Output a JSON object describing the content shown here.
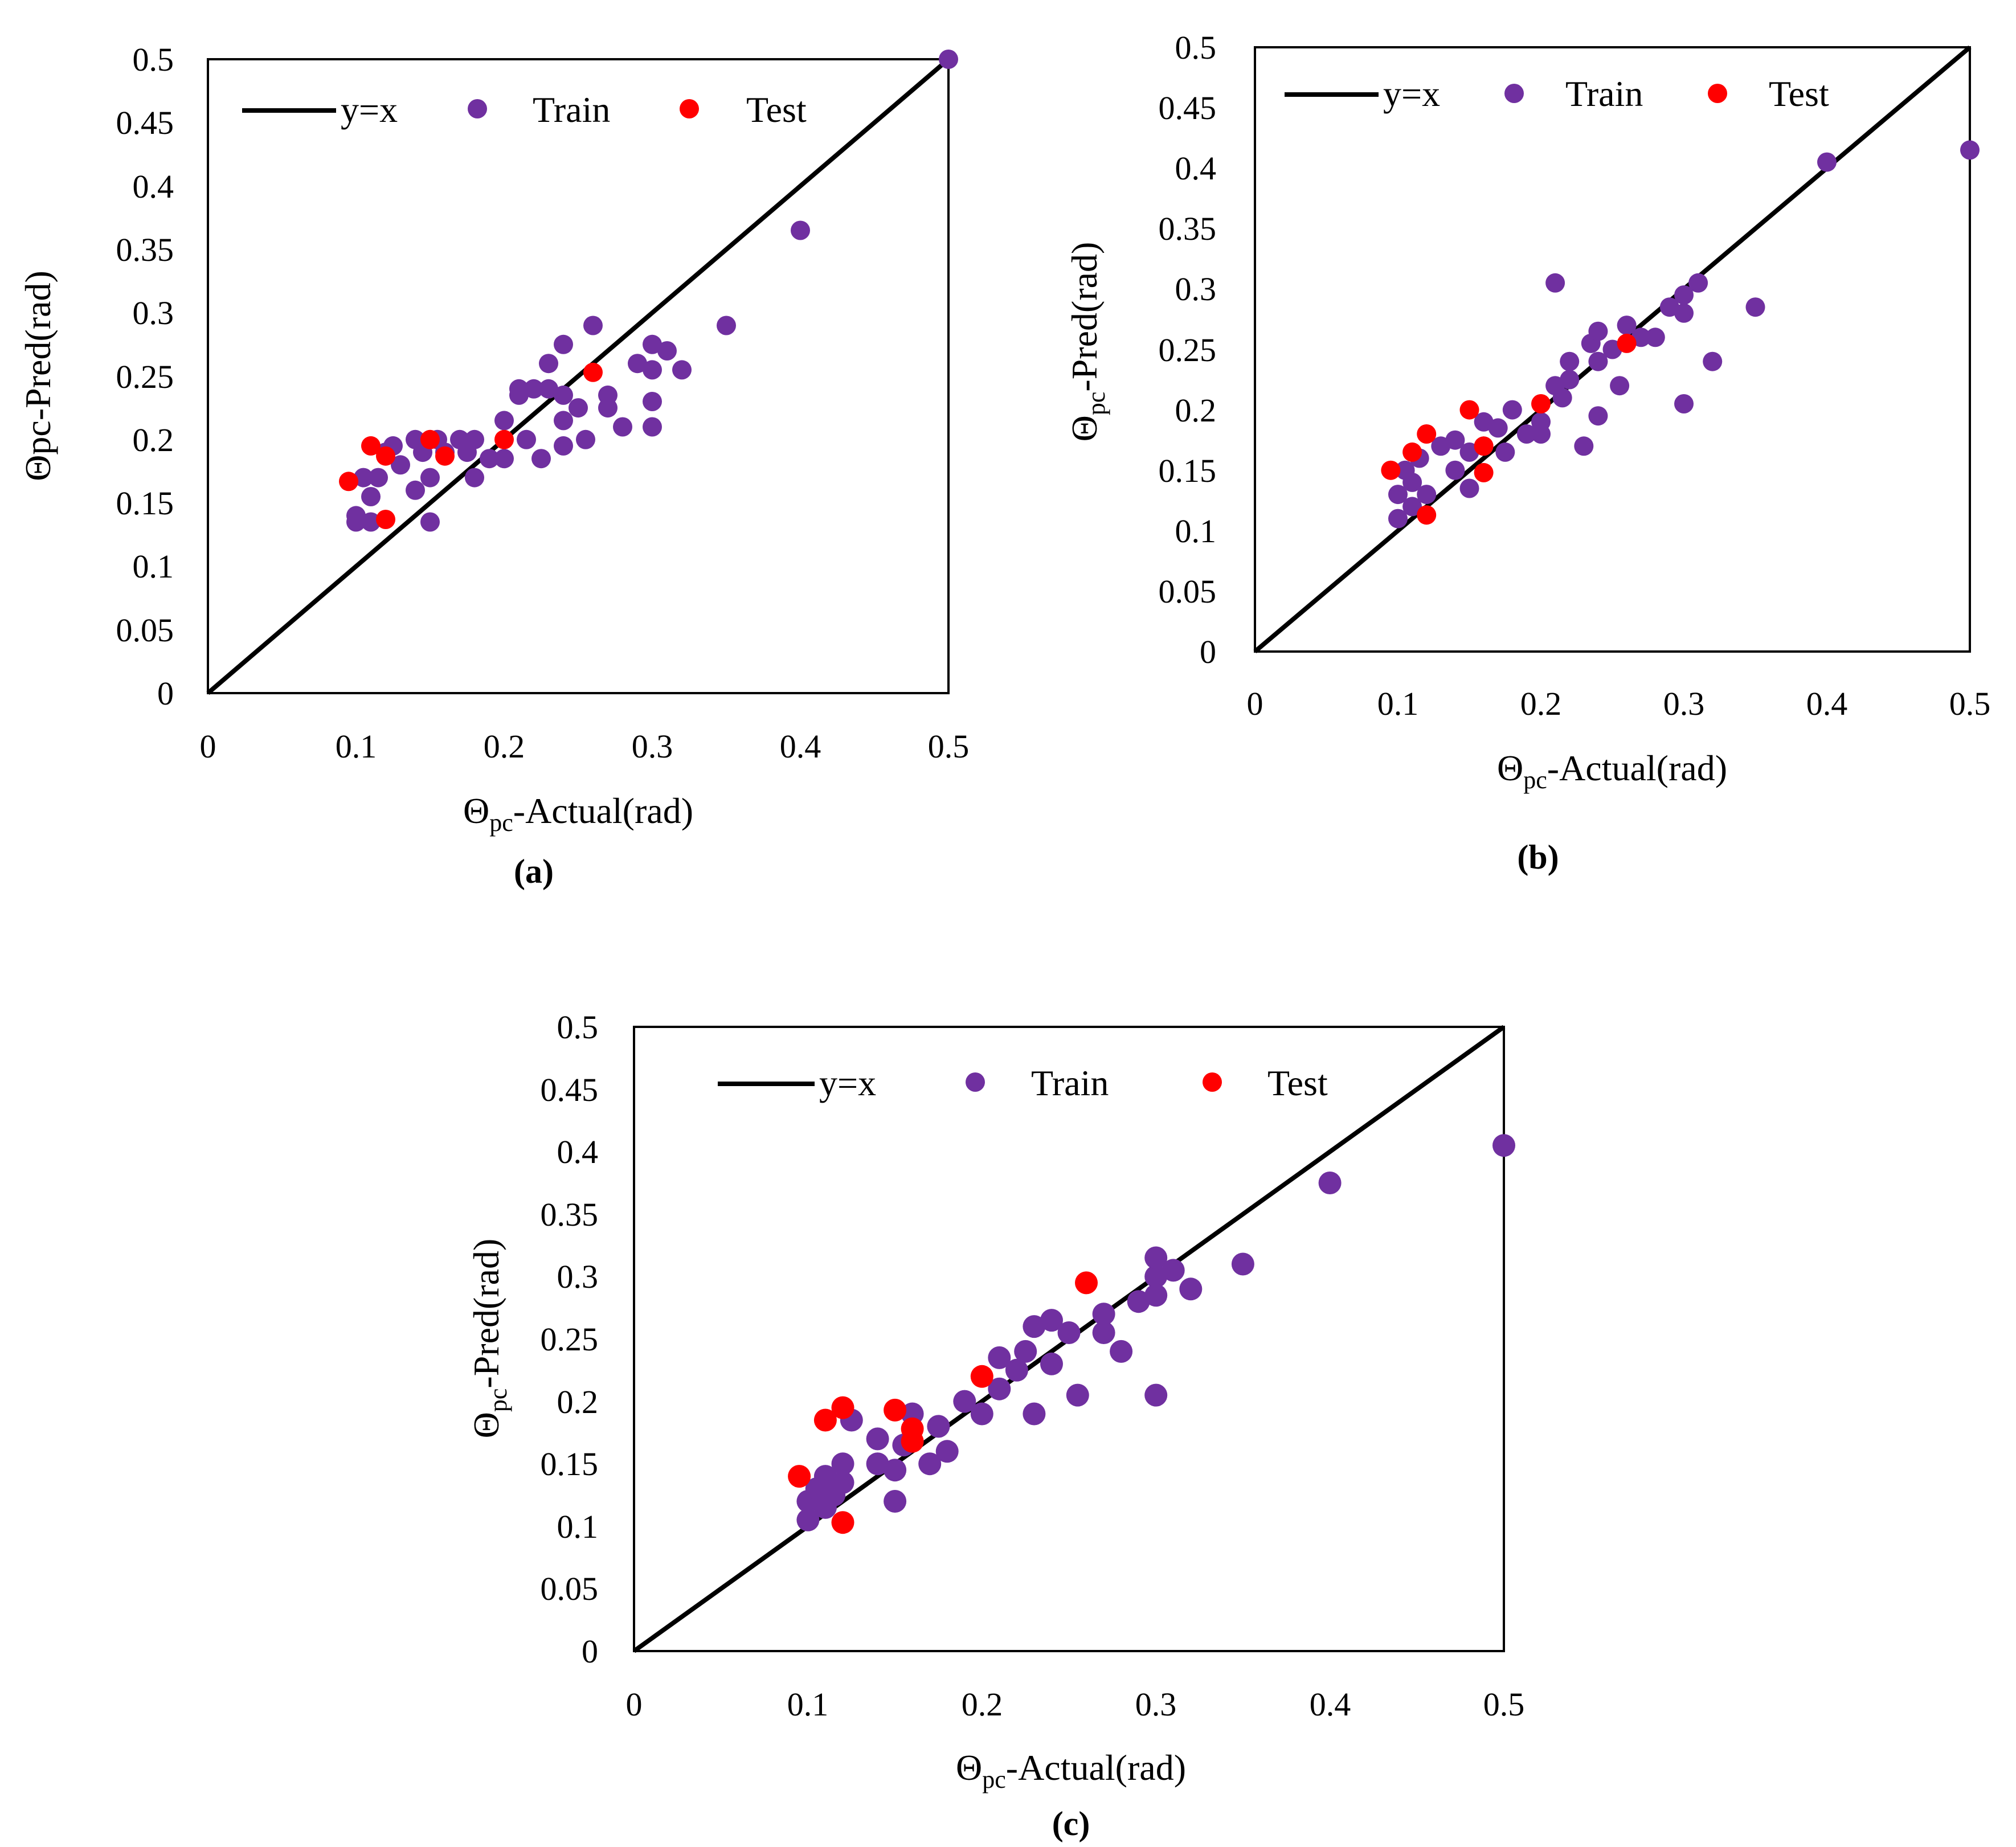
{
  "colors": {
    "train": "#7030A0",
    "test": "#FF0000",
    "line": "#000000",
    "frame": "#000000"
  },
  "panels": [
    {
      "id": "a",
      "caption": "(a)",
      "ylabel": "Θpc-Pred(rad)",
      "xlabel": {
        "theta": "Θ",
        "sub": "pc",
        "rest": "-Actual(rad)"
      },
      "legend": {
        "line": "y=x",
        "train": "Train",
        "test": "Test"
      },
      "xticks": [
        "0",
        "0.1",
        "0.2",
        "0.3",
        "0.4",
        "0.5"
      ],
      "yticks": [
        "0",
        "0.05",
        "0.1",
        "0.15",
        "0.2",
        "0.25",
        "0.3",
        "0.35",
        "0.4",
        "0.45",
        "0.5"
      ]
    },
    {
      "id": "b",
      "caption": "(b)",
      "ylabel": {
        "theta": "Θ",
        "sub": "pc",
        "rest": "-Pred(rad)"
      },
      "xlabel": {
        "theta": "Θ",
        "sub": "pc",
        "rest": "-Actual(rad)"
      },
      "legend": {
        "line": "y=x",
        "train": "Train",
        "test": "Test"
      },
      "xticks": [
        "0",
        "0.1",
        "0.2",
        "0.3",
        "0.4",
        "0.5"
      ],
      "yticks": [
        "0",
        "0.05",
        "0.1",
        "0.15",
        "0.2",
        "0.25",
        "0.3",
        "0.35",
        "0.4",
        "0.45",
        "0.5"
      ]
    },
    {
      "id": "c",
      "caption": "(c)",
      "ylabel": {
        "theta": "Θ",
        "sub": "pc",
        "rest": "-Pred(rad)"
      },
      "xlabel": {
        "theta": "Θ",
        "sub": "pc",
        "rest": "-Actual(rad)"
      },
      "legend": {
        "line": "y=x",
        "train": "Train",
        "test": "Test"
      },
      "xticks": [
        "0",
        "0.1",
        "0.2",
        "0.3",
        "0.4",
        "0.5"
      ],
      "yticks": [
        "0",
        "0.05",
        "0.1",
        "0.15",
        "0.2",
        "0.25",
        "0.3",
        "0.35",
        "0.4",
        "0.45",
        "0.5"
      ]
    }
  ],
  "chart_data": [
    {
      "type": "scatter",
      "panel": "a",
      "xlabel": "Θpc-Actual(rad)",
      "ylabel": "Θpc-Pred(rad)",
      "xlim": [
        0,
        0.5
      ],
      "ylim": [
        0,
        0.5
      ],
      "grid": false,
      "legend_position": "top",
      "series": [
        {
          "name": "y=x",
          "kind": "line",
          "x": [
            0,
            0.5
          ],
          "y": [
            0,
            0.5
          ]
        },
        {
          "name": "Train",
          "kind": "scatter",
          "points": [
            [
              0.1,
              0.14
            ],
            [
              0.1,
              0.135
            ],
            [
              0.105,
              0.17
            ],
            [
              0.11,
              0.155
            ],
            [
              0.11,
              0.135
            ],
            [
              0.115,
              0.17
            ],
            [
              0.12,
              0.19
            ],
            [
              0.125,
              0.195
            ],
            [
              0.13,
              0.18
            ],
            [
              0.14,
              0.2
            ],
            [
              0.14,
              0.16
            ],
            [
              0.145,
              0.19
            ],
            [
              0.15,
              0.17
            ],
            [
              0.15,
              0.135
            ],
            [
              0.155,
              0.2
            ],
            [
              0.16,
              0.19
            ],
            [
              0.17,
              0.2
            ],
            [
              0.175,
              0.19
            ],
            [
              0.18,
              0.2
            ],
            [
              0.18,
              0.17
            ],
            [
              0.19,
              0.185
            ],
            [
              0.2,
              0.215
            ],
            [
              0.2,
              0.185
            ],
            [
              0.21,
              0.24
            ],
            [
              0.21,
              0.235
            ],
            [
              0.215,
              0.2
            ],
            [
              0.22,
              0.24
            ],
            [
              0.225,
              0.185
            ],
            [
              0.23,
              0.26
            ],
            [
              0.23,
              0.24
            ],
            [
              0.24,
              0.275
            ],
            [
              0.24,
              0.235
            ],
            [
              0.24,
              0.215
            ],
            [
              0.24,
              0.195
            ],
            [
              0.25,
              0.225
            ],
            [
              0.255,
              0.2
            ],
            [
              0.26,
              0.29
            ],
            [
              0.27,
              0.235
            ],
            [
              0.27,
              0.225
            ],
            [
              0.28,
              0.21
            ],
            [
              0.29,
              0.26
            ],
            [
              0.3,
              0.275
            ],
            [
              0.3,
              0.255
            ],
            [
              0.3,
              0.23
            ],
            [
              0.3,
              0.21
            ],
            [
              0.31,
              0.27
            ],
            [
              0.32,
              0.255
            ],
            [
              0.35,
              0.29
            ],
            [
              0.4,
              0.365
            ],
            [
              0.5,
              0.5
            ]
          ]
        },
        {
          "name": "Test",
          "kind": "scatter",
          "points": [
            [
              0.095,
              0.167
            ],
            [
              0.11,
              0.195
            ],
            [
              0.12,
              0.187
            ],
            [
              0.12,
              0.137
            ],
            [
              0.15,
              0.2
            ],
            [
              0.16,
              0.187
            ],
            [
              0.2,
              0.2
            ],
            [
              0.26,
              0.253
            ]
          ]
        }
      ]
    },
    {
      "type": "scatter",
      "panel": "b",
      "xlabel": "Θpc-Actual(rad)",
      "ylabel": "Θpc-Pred(rad)",
      "xlim": [
        0,
        0.5
      ],
      "ylim": [
        0,
        0.5
      ],
      "grid": false,
      "legend_position": "top",
      "series": [
        {
          "name": "y=x",
          "kind": "line",
          "x": [
            0,
            0.5
          ],
          "y": [
            0,
            0.5
          ]
        },
        {
          "name": "Train",
          "kind": "scatter",
          "points": [
            [
              0.1,
              0.11
            ],
            [
              0.1,
              0.13
            ],
            [
              0.105,
              0.15
            ],
            [
              0.11,
              0.12
            ],
            [
              0.11,
              0.14
            ],
            [
              0.115,
              0.16
            ],
            [
              0.12,
              0.13
            ],
            [
              0.13,
              0.17
            ],
            [
              0.14,
              0.15
            ],
            [
              0.14,
              0.175
            ],
            [
              0.15,
              0.135
            ],
            [
              0.15,
              0.165
            ],
            [
              0.16,
              0.17
            ],
            [
              0.16,
              0.19
            ],
            [
              0.17,
              0.185
            ],
            [
              0.175,
              0.165
            ],
            [
              0.18,
              0.2
            ],
            [
              0.19,
              0.18
            ],
            [
              0.2,
              0.19
            ],
            [
              0.2,
              0.18
            ],
            [
              0.21,
              0.305
            ],
            [
              0.21,
              0.22
            ],
            [
              0.215,
              0.21
            ],
            [
              0.22,
              0.24
            ],
            [
              0.22,
              0.225
            ],
            [
              0.23,
              0.17
            ],
            [
              0.235,
              0.255
            ],
            [
              0.24,
              0.265
            ],
            [
              0.24,
              0.24
            ],
            [
              0.24,
              0.195
            ],
            [
              0.25,
              0.25
            ],
            [
              0.255,
              0.22
            ],
            [
              0.26,
              0.27
            ],
            [
              0.27,
              0.26
            ],
            [
              0.28,
              0.26
            ],
            [
              0.29,
              0.285
            ],
            [
              0.3,
              0.295
            ],
            [
              0.3,
              0.28
            ],
            [
              0.3,
              0.205
            ],
            [
              0.31,
              0.305
            ],
            [
              0.32,
              0.24
            ],
            [
              0.35,
              0.285
            ],
            [
              0.4,
              0.405
            ],
            [
              0.5,
              0.415
            ]
          ]
        },
        {
          "name": "Test",
          "kind": "scatter",
          "points": [
            [
              0.095,
              0.15
            ],
            [
              0.11,
              0.165
            ],
            [
              0.12,
              0.18
            ],
            [
              0.12,
              0.113
            ],
            [
              0.15,
              0.2
            ],
            [
              0.16,
              0.17
            ],
            [
              0.16,
              0.148
            ],
            [
              0.2,
              0.205
            ],
            [
              0.26,
              0.255
            ]
          ]
        }
      ]
    },
    {
      "type": "scatter",
      "panel": "c",
      "xlabel": "Θpc-Actual(rad)",
      "ylabel": "Θpc-Pred(rad)",
      "xlim": [
        0,
        0.5
      ],
      "ylim": [
        0,
        0.5
      ],
      "grid": false,
      "legend_position": "top",
      "series": [
        {
          "name": "y=x",
          "kind": "line",
          "x": [
            0,
            0.5
          ],
          "y": [
            0,
            0.5
          ]
        },
        {
          "name": "Train",
          "kind": "scatter",
          "points": [
            [
              0.1,
              0.105
            ],
            [
              0.1,
              0.12
            ],
            [
              0.105,
              0.13
            ],
            [
              0.11,
              0.14
            ],
            [
              0.11,
              0.115
            ],
            [
              0.115,
              0.125
            ],
            [
              0.12,
              0.135
            ],
            [
              0.12,
              0.15
            ],
            [
              0.125,
              0.185
            ],
            [
              0.14,
              0.15
            ],
            [
              0.14,
              0.17
            ],
            [
              0.15,
              0.12
            ],
            [
              0.15,
              0.145
            ],
            [
              0.155,
              0.165
            ],
            [
              0.16,
              0.19
            ],
            [
              0.17,
              0.15
            ],
            [
              0.175,
              0.18
            ],
            [
              0.18,
              0.16
            ],
            [
              0.19,
              0.2
            ],
            [
              0.2,
              0.19
            ],
            [
              0.21,
              0.21
            ],
            [
              0.21,
              0.235
            ],
            [
              0.22,
              0.225
            ],
            [
              0.225,
              0.24
            ],
            [
              0.23,
              0.26
            ],
            [
              0.23,
              0.19
            ],
            [
              0.24,
              0.265
            ],
            [
              0.24,
              0.23
            ],
            [
              0.25,
              0.255
            ],
            [
              0.255,
              0.205
            ],
            [
              0.27,
              0.255
            ],
            [
              0.27,
              0.27
            ],
            [
              0.28,
              0.24
            ],
            [
              0.29,
              0.28
            ],
            [
              0.3,
              0.3
            ],
            [
              0.3,
              0.315
            ],
            [
              0.3,
              0.285
            ],
            [
              0.3,
              0.205
            ],
            [
              0.31,
              0.305
            ],
            [
              0.32,
              0.29
            ],
            [
              0.35,
              0.31
            ],
            [
              0.4,
              0.375
            ],
            [
              0.5,
              0.405
            ]
          ]
        },
        {
          "name": "Test",
          "kind": "scatter",
          "points": [
            [
              0.095,
              0.14
            ],
            [
              0.11,
              0.185
            ],
            [
              0.12,
              0.195
            ],
            [
              0.12,
              0.103
            ],
            [
              0.15,
              0.193
            ],
            [
              0.16,
              0.178
            ],
            [
              0.16,
              0.168
            ],
            [
              0.2,
              0.22
            ],
            [
              0.26,
              0.295
            ]
          ]
        }
      ]
    }
  ]
}
